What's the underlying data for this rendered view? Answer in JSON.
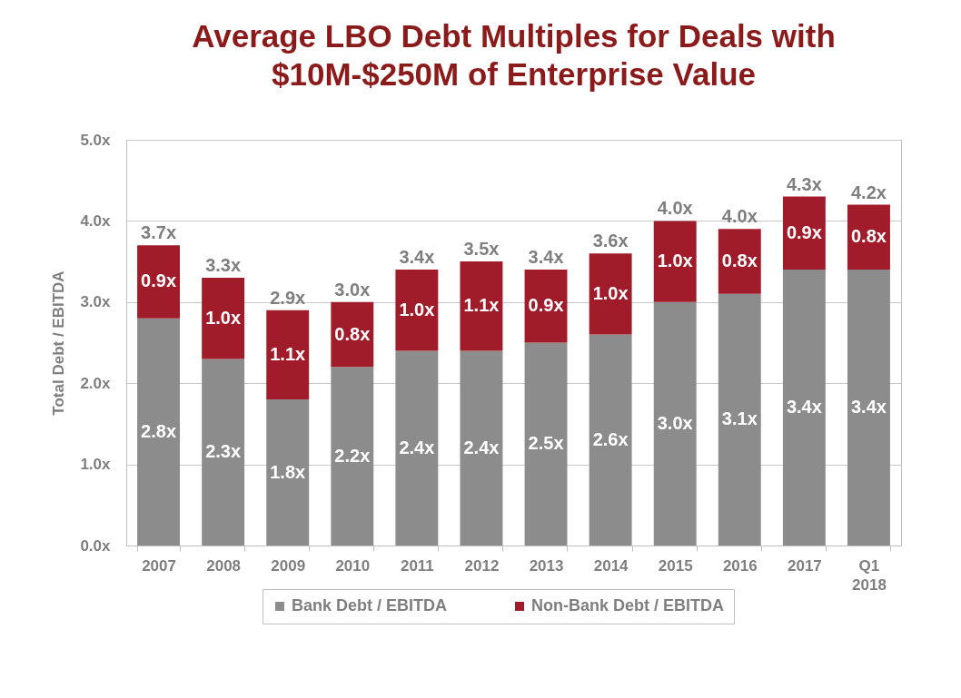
{
  "chart_data": {
    "type": "bar",
    "title": "Average LBO Debt Multiples for Deals with $10M-$250M of Enterprise Value",
    "ylabel": "Total Debt / EBITDA",
    "categories": [
      "2007",
      "2008",
      "2009",
      "2010",
      "2011",
      "2012",
      "2013",
      "2014",
      "2015",
      "2016",
      "2017",
      "Q1 2018"
    ],
    "stacked": true,
    "series": [
      {
        "name": "Bank Debt / EBITDA",
        "color": "#8c8c8c",
        "values": [
          2.8,
          2.3,
          1.8,
          2.2,
          2.4,
          2.4,
          2.5,
          2.6,
          3.0,
          3.1,
          3.4,
          3.4
        ],
        "value_labels": [
          "2.8x",
          "2.3x",
          "1.8x",
          "2.2x",
          "2.4x",
          "2.4x",
          "2.5x",
          "2.6x",
          "3.0x",
          "3.1x",
          "3.4x",
          "3.4x"
        ]
      },
      {
        "name": "Non-Bank Debt / EBITDA",
        "color": "#a11c2a",
        "values": [
          0.9,
          1.0,
          1.1,
          0.8,
          1.0,
          1.1,
          0.9,
          1.0,
          1.0,
          0.8,
          0.9,
          0.8
        ],
        "value_labels": [
          "0.9x",
          "1.0x",
          "1.1x",
          "0.8x",
          "1.0x",
          "1.1x",
          "0.9x",
          "1.0x",
          "1.0x",
          "0.8x",
          "0.9x",
          "0.8x"
        ]
      }
    ],
    "totals": [
      "3.7x",
      "3.3x",
      "2.9x",
      "3.0x",
      "3.4x",
      "3.5x",
      "3.4x",
      "3.6x",
      "4.0x",
      "4.0x",
      "4.3x",
      "4.2x"
    ],
    "ylim": [
      0,
      5
    ],
    "yticks": [
      {
        "value": 0,
        "label": "0.0x"
      },
      {
        "value": 1,
        "label": "1.0x"
      },
      {
        "value": 2,
        "label": "2.0x"
      },
      {
        "value": 3,
        "label": "3.0x"
      },
      {
        "value": 4,
        "label": "4.0x"
      },
      {
        "value": 5,
        "label": "5.0x"
      }
    ],
    "grid": "y",
    "legend": "bottom"
  }
}
